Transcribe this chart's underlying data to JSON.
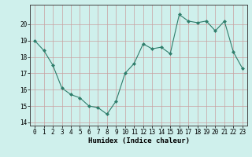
{
  "x": [
    0,
    1,
    2,
    3,
    4,
    5,
    6,
    7,
    8,
    9,
    10,
    11,
    12,
    13,
    14,
    15,
    16,
    17,
    18,
    19,
    20,
    21,
    22,
    23
  ],
  "y": [
    19.0,
    18.4,
    17.5,
    16.1,
    15.7,
    15.5,
    15.0,
    14.9,
    14.5,
    15.3,
    17.0,
    17.6,
    18.8,
    18.5,
    18.6,
    18.2,
    20.6,
    20.2,
    20.1,
    20.2,
    19.6,
    20.2,
    18.3,
    17.3
  ],
  "line_color": "#2e7d6b",
  "marker": "D",
  "marker_size": 2.0,
  "bg_color": "#cff0ec",
  "grid_color": "#c8a0a0",
  "xlabel": "Humidex (Indice chaleur)",
  "ylim": [
    13.8,
    21.2
  ],
  "xlim": [
    -0.5,
    23.5
  ],
  "yticks": [
    14,
    15,
    16,
    17,
    18,
    19,
    20
  ],
  "xticks": [
    0,
    1,
    2,
    3,
    4,
    5,
    6,
    7,
    8,
    9,
    10,
    11,
    12,
    13,
    14,
    15,
    16,
    17,
    18,
    19,
    20,
    21,
    22,
    23
  ],
  "tick_fontsize": 5.5,
  "xlabel_fontsize": 6.5,
  "line_width": 0.8
}
